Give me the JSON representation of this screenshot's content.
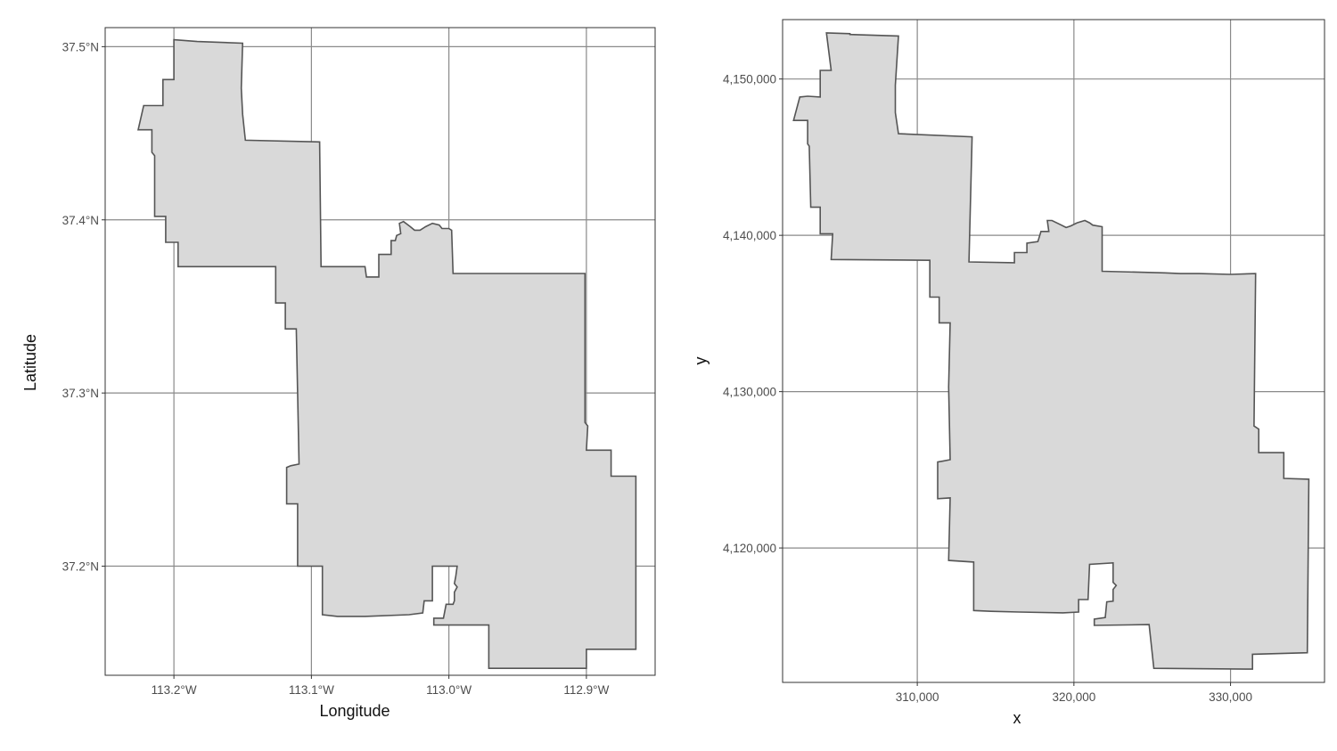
{
  "chart_data": [
    {
      "type": "map",
      "xlabel": "Longitude",
      "ylabel": "Latitude",
      "x_ticks": [
        -113.2,
        -113.1,
        -113.0,
        -112.9
      ],
      "x_tick_labels": [
        "113.2°W",
        "113.1°W",
        "113.0°W",
        "112.9°W"
      ],
      "y_ticks": [
        37.2,
        37.3,
        37.4,
        37.5
      ],
      "y_tick_labels": [
        "37.2°N",
        "37.3°N",
        "37.4°N",
        "37.5°N"
      ],
      "xlim": [
        -113.25,
        -112.85
      ],
      "ylim": [
        37.137,
        37.511
      ],
      "grid": true,
      "fill_color": "#d9d9d9",
      "outline_color": "#555555",
      "boundary": [
        [
          -113.2,
          37.504
        ],
        [
          -113.183,
          37.503
        ],
        [
          -113.183,
          37.503
        ],
        [
          -113.15,
          37.502
        ],
        [
          -113.151,
          37.476
        ],
        [
          -113.15,
          37.461
        ],
        [
          -113.148,
          37.446
        ],
        [
          -113.094,
          37.445
        ],
        [
          -113.093,
          37.373
        ],
        [
          -113.061,
          37.373
        ],
        [
          -113.06,
          37.367
        ],
        [
          -113.051,
          37.367
        ],
        [
          -113.051,
          37.38
        ],
        [
          -113.042,
          37.38
        ],
        [
          -113.042,
          37.388
        ],
        [
          -113.039,
          37.388
        ],
        [
          -113.038,
          37.391
        ],
        [
          -113.035,
          37.392
        ],
        [
          -113.036,
          37.398
        ],
        [
          -113.033,
          37.399
        ],
        [
          -113.028,
          37.396
        ],
        [
          -113.025,
          37.394
        ],
        [
          -113.021,
          37.394
        ],
        [
          -113.017,
          37.396
        ],
        [
          -113.012,
          37.398
        ],
        [
          -113.007,
          37.397
        ],
        [
          -113.005,
          37.395
        ],
        [
          -113.0,
          37.395
        ],
        [
          -112.998,
          37.394
        ],
        [
          -112.997,
          37.369
        ],
        [
          -112.954,
          37.369
        ],
        [
          -112.943,
          37.369
        ],
        [
          -112.93,
          37.369
        ],
        [
          -112.918,
          37.369
        ],
        [
          -112.901,
          37.369
        ],
        [
          -112.901,
          37.283
        ],
        [
          -112.899,
          37.281
        ],
        [
          -112.9,
          37.267
        ],
        [
          -112.882,
          37.267
        ],
        [
          -112.882,
          37.252
        ],
        [
          -112.864,
          37.252
        ],
        [
          -112.864,
          37.152
        ],
        [
          -112.9,
          37.152
        ],
        [
          -112.9,
          37.141
        ],
        [
          -112.971,
          37.141
        ],
        [
          -112.971,
          37.166
        ],
        [
          -113.011,
          37.166
        ],
        [
          -113.011,
          37.17
        ],
        [
          -113.004,
          37.17
        ],
        [
          -113.002,
          37.178
        ],
        [
          -112.997,
          37.178
        ],
        [
          -112.996,
          37.18
        ],
        [
          -112.996,
          37.185
        ],
        [
          -112.994,
          37.188
        ],
        [
          -112.996,
          37.19
        ],
        [
          -112.995,
          37.194
        ],
        [
          -112.994,
          37.2
        ],
        [
          -113.012,
          37.2
        ],
        [
          -113.012,
          37.18
        ],
        [
          -113.018,
          37.18
        ],
        [
          -113.019,
          37.173
        ],
        [
          -113.029,
          37.172
        ],
        [
          -113.061,
          37.171
        ],
        [
          -113.081,
          37.171
        ],
        [
          -113.092,
          37.172
        ],
        [
          -113.092,
          37.2
        ],
        [
          -113.11,
          37.2
        ],
        [
          -113.11,
          37.236
        ],
        [
          -113.118,
          37.236
        ],
        [
          -113.118,
          37.257
        ],
        [
          -113.115,
          37.258
        ],
        [
          -113.109,
          37.259
        ],
        [
          -113.11,
          37.3
        ],
        [
          -113.111,
          37.337
        ],
        [
          -113.119,
          37.337
        ],
        [
          -113.119,
          37.352
        ],
        [
          -113.126,
          37.352
        ],
        [
          -113.126,
          37.373
        ],
        [
          -113.197,
          37.373
        ],
        [
          -113.197,
          37.387
        ],
        [
          -113.206,
          37.387
        ],
        [
          -113.206,
          37.402
        ],
        [
          -113.214,
          37.402
        ],
        [
          -113.214,
          37.437
        ],
        [
          -113.216,
          37.439
        ],
        [
          -113.216,
          37.452
        ],
        [
          -113.226,
          37.452
        ],
        [
          -113.222,
          37.466
        ],
        [
          -113.216,
          37.466
        ],
        [
          -113.208,
          37.466
        ],
        [
          -113.208,
          37.481
        ],
        [
          -113.2,
          37.481
        ]
      ]
    },
    {
      "type": "map",
      "xlabel": "x",
      "ylabel": "y",
      "x_ticks": [
        310000,
        320000,
        330000
      ],
      "x_tick_labels": [
        "310,000",
        "320,000",
        "330,000"
      ],
      "y_ticks": [
        4120000,
        4130000,
        4140000,
        4150000
      ],
      "y_tick_labels": [
        "4,120,000",
        "4,130,000",
        "4,140,000",
        "4,150,000"
      ],
      "xlim": [
        301400,
        336000
      ],
      "ylim": [
        4111400,
        4153800
      ],
      "grid": true,
      "fill_color": "#d9d9d9",
      "outline_color": "#555555",
      "boundary": [
        [
          304200,
          4152950
        ],
        [
          305700,
          4152900
        ],
        [
          305700,
          4152850
        ],
        [
          308800,
          4152750
        ],
        [
          308600,
          4149600
        ],
        [
          308600,
          4147850
        ],
        [
          308800,
          4146500
        ],
        [
          313500,
          4146300
        ],
        [
          313300,
          4138300
        ],
        [
          316200,
          4138250
        ],
        [
          316200,
          4138900
        ],
        [
          317000,
          4138900
        ],
        [
          317000,
          4139500
        ],
        [
          317700,
          4139600
        ],
        [
          317900,
          4140250
        ],
        [
          318400,
          4140250
        ],
        [
          318300,
          4140950
        ],
        [
          318600,
          4140950
        ],
        [
          319200,
          4140650
        ],
        [
          319500,
          4140500
        ],
        [
          319800,
          4140600
        ],
        [
          320200,
          4140800
        ],
        [
          320700,
          4140950
        ],
        [
          321000,
          4140800
        ],
        [
          321200,
          4140650
        ],
        [
          321800,
          4140550
        ],
        [
          321800,
          4137700
        ],
        [
          325800,
          4137600
        ],
        [
          326800,
          4137550
        ],
        [
          328000,
          4137550
        ],
        [
          330000,
          4137500
        ],
        [
          331600,
          4137550
        ],
        [
          331500,
          4127800
        ],
        [
          331800,
          4127600
        ],
        [
          331800,
          4126100
        ],
        [
          333400,
          4126100
        ],
        [
          333400,
          4124450
        ],
        [
          335000,
          4124400
        ],
        [
          334900,
          4113300
        ],
        [
          331400,
          4113200
        ],
        [
          331400,
          4112250
        ],
        [
          325100,
          4112300
        ],
        [
          324800,
          4115100
        ],
        [
          321300,
          4115050
        ],
        [
          321300,
          4115450
        ],
        [
          322000,
          4115550
        ],
        [
          322100,
          4116550
        ],
        [
          322500,
          4116600
        ],
        [
          322500,
          4116750
        ],
        [
          322500,
          4117350
        ],
        [
          322700,
          4117600
        ],
        [
          322500,
          4117800
        ],
        [
          322500,
          4118350
        ],
        [
          322500,
          4119050
        ],
        [
          321000,
          4118950
        ],
        [
          320900,
          4116700
        ],
        [
          320300,
          4116700
        ],
        [
          320300,
          4115900
        ],
        [
          319300,
          4115850
        ],
        [
          316500,
          4115900
        ],
        [
          314700,
          4115950
        ],
        [
          313600,
          4116000
        ],
        [
          313600,
          4119100
        ],
        [
          312000,
          4119200
        ],
        [
          312100,
          4123200
        ],
        [
          311300,
          4123150
        ],
        [
          311300,
          4125500
        ],
        [
          311600,
          4125550
        ],
        [
          312100,
          4125650
        ],
        [
          312000,
          4130300
        ],
        [
          312100,
          4134400
        ],
        [
          311400,
          4134400
        ],
        [
          311400,
          4136050
        ],
        [
          310800,
          4136050
        ],
        [
          310800,
          4138400
        ],
        [
          304500,
          4138450
        ],
        [
          304600,
          4140100
        ],
        [
          303800,
          4140100
        ],
        [
          303800,
          4141800
        ],
        [
          303200,
          4141800
        ],
        [
          303100,
          4145700
        ],
        [
          303000,
          4145850
        ],
        [
          303000,
          4147350
        ],
        [
          302100,
          4147350
        ],
        [
          302500,
          4148850
        ],
        [
          303000,
          4148900
        ],
        [
          303800,
          4148850
        ],
        [
          303800,
          4150550
        ],
        [
          304500,
          4150550
        ]
      ]
    }
  ]
}
